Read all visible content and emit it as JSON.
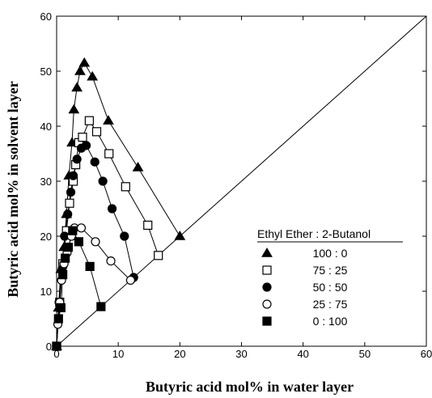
{
  "chart_data": {
    "type": "scatter",
    "title": "",
    "xlabel": "Butyric acid mol% in water layer",
    "ylabel": "Butyric acid mol% in solvent layer",
    "xlim": [
      0,
      60
    ],
    "ylim": [
      0,
      60
    ],
    "xticks": [
      "0",
      "10",
      "20",
      "30",
      "40",
      "50",
      "60"
    ],
    "yticks": [
      "0",
      "10",
      "20",
      "30",
      "40",
      "50",
      "60"
    ],
    "grid": false,
    "diagonal": true,
    "legend": {
      "title": "Ethyl Ether : 2-Butanol",
      "placement": "bottom-right",
      "entries": [
        "100 :   0",
        "75 :  25",
        "50 :  50",
        "25 :  75",
        "0 : 100"
      ]
    },
    "series": [
      {
        "name": "100 :   0",
        "marker": "filled-triangle",
        "solvent_points": [
          [
            0,
            0
          ],
          [
            0.3,
            7
          ],
          [
            0.7,
            14
          ],
          [
            1.2,
            18
          ],
          [
            1.6,
            24
          ],
          [
            2,
            31
          ],
          [
            2.5,
            37
          ],
          [
            2.8,
            43
          ],
          [
            3.3,
            47
          ],
          [
            3.8,
            50
          ],
          [
            4.5,
            51.5
          ]
        ],
        "tie_line_end": [
          20,
          20
        ],
        "water_points": [
          [
            5.8,
            49
          ],
          [
            8.4,
            41
          ],
          [
            13.2,
            32.5
          ]
        ]
      },
      {
        "name": "75 :  25",
        "marker": "open-square",
        "solvent_points": [
          [
            0,
            0
          ],
          [
            0.5,
            8
          ],
          [
            1,
            15
          ],
          [
            1.6,
            21
          ],
          [
            2.1,
            26
          ],
          [
            2.7,
            30
          ],
          [
            3.1,
            33
          ],
          [
            3.6,
            37
          ],
          [
            4.2,
            38
          ],
          [
            5.3,
            41
          ]
        ],
        "tie_line_end": [
          16.5,
          16.5
        ],
        "water_points": [
          [
            6.5,
            39
          ],
          [
            8.5,
            35
          ],
          [
            11.2,
            29
          ],
          [
            14.8,
            22
          ]
        ]
      },
      {
        "name": "50 :  50",
        "marker": "filled-circle",
        "solvent_points": [
          [
            0,
            0
          ],
          [
            0.4,
            8
          ],
          [
            0.9,
            14
          ],
          [
            1.3,
            20
          ],
          [
            1.8,
            24
          ],
          [
            2.3,
            28
          ],
          [
            2.7,
            31
          ],
          [
            3.3,
            34
          ],
          [
            4,
            36
          ],
          [
            4.8,
            36.5
          ]
        ],
        "tie_line_end": [
          12.5,
          12.5
        ],
        "water_points": [
          [
            6.2,
            33.5
          ],
          [
            7.5,
            30
          ],
          [
            9,
            25
          ],
          [
            11,
            20
          ]
        ]
      },
      {
        "name": "25 :  75",
        "marker": "open-circle",
        "solvent_points": [
          [
            0,
            0
          ],
          [
            0.2,
            4
          ],
          [
            0.5,
            8
          ],
          [
            0.8,
            12
          ],
          [
            1.2,
            15
          ],
          [
            1.7,
            17
          ],
          [
            2.4,
            20
          ],
          [
            2.9,
            21.5
          ],
          [
            4,
            21.5
          ]
        ],
        "tie_line_end": [
          12,
          12
        ],
        "water_points": [
          [
            6.3,
            19
          ],
          [
            8.8,
            15.5
          ]
        ]
      },
      {
        "name": "0 : 100",
        "marker": "filled-square",
        "solvent_points": [
          [
            0,
            0
          ],
          [
            0.3,
            5
          ],
          [
            0.7,
            7
          ],
          [
            1,
            13
          ],
          [
            1.4,
            16
          ],
          [
            1.9,
            18
          ],
          [
            2.6,
            21
          ],
          [
            3.6,
            19
          ]
        ],
        "tie_line_end": [
          7.2,
          7.2
        ],
        "water_points": [
          [
            5.4,
            14.5
          ]
        ]
      }
    ]
  }
}
